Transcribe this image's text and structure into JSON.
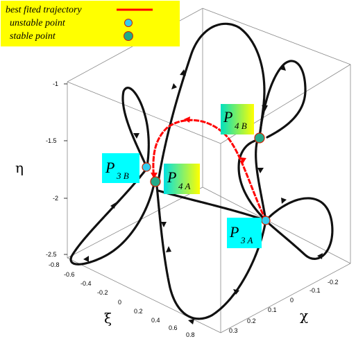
{
  "chart_data": {
    "type": "line",
    "projection": "3d",
    "legend": {
      "placement": "top-left",
      "background": "#ffff00",
      "entries": [
        {
          "label": "best fited trajectory",
          "marker": "line",
          "color": "#ff0000"
        },
        {
          "label": "unstable point",
          "marker": "circle",
          "color": "#33ccee"
        },
        {
          "label": "stable point",
          "marker": "circle",
          "color": "#22aa88"
        }
      ]
    },
    "axes": {
      "eta": {
        "label": "η",
        "ticks": [
          "-1",
          "-1.5",
          "-2",
          "-2.5"
        ],
        "range": [
          -2.5,
          -1
        ]
      },
      "xi": {
        "label": "ξ",
        "ticks": [
          "-0.8",
          "-0.6",
          "-0.4",
          "-0.2",
          "0",
          "0.2",
          "0.4",
          "0.6",
          "0.8"
        ],
        "range": [
          -0.8,
          0.8
        ]
      },
      "chi": {
        "label": "χ",
        "ticks": [
          "-0.2",
          "-0.1",
          "0",
          "0.1",
          "0.2",
          "0.3"
        ],
        "range": [
          -0.25,
          0.3
        ]
      }
    },
    "points": [
      {
        "name": "P",
        "subscript": "3 B",
        "kind": "unstable"
      },
      {
        "name": "P",
        "subscript": "4 A",
        "kind": "stable"
      },
      {
        "name": "P",
        "subscript": "4 B",
        "kind": "stable"
      },
      {
        "name": "P",
        "subscript": "3 A",
        "kind": "unstable"
      }
    ],
    "series": [
      {
        "name": "best fited trajectory",
        "color": "#ff0000"
      }
    ],
    "colors": {
      "trajectory": "#111111",
      "best_fit": "#ff0000",
      "label_box": "#00ffff",
      "unstable": "#33ccee",
      "stable": "#22aa88",
      "box_lines": "#888888"
    }
  }
}
